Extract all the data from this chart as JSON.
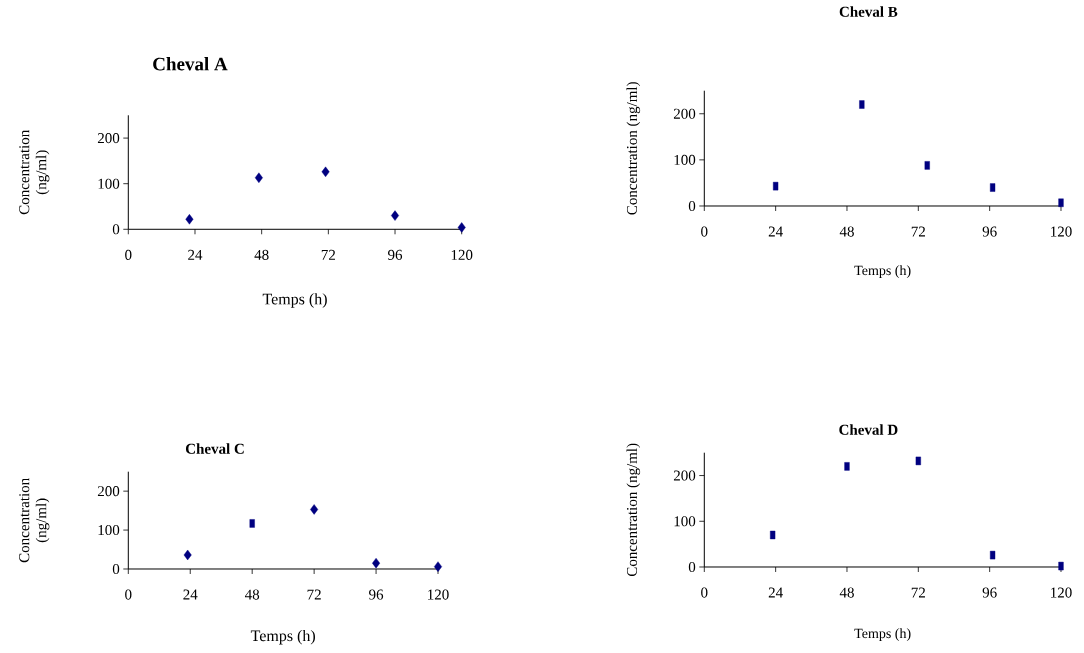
{
  "chart_data": [
    {
      "type": "scatter",
      "title": "Cheval A",
      "xlabel": "Temps (h)",
      "ylabel": "Concentration (ng/ml)",
      "xlim": [
        0,
        120
      ],
      "ylim": [
        0,
        250
      ],
      "xticks": [
        0,
        24,
        48,
        72,
        96,
        120
      ],
      "yticks": [
        0,
        100,
        200
      ],
      "series": [
        {
          "color": "#000080",
          "marker": "diamond",
          "x": [
            22,
            47,
            71,
            96,
            120
          ],
          "values": [
            22,
            113,
            126,
            30,
            4
          ]
        }
      ]
    },
    {
      "type": "scatter",
      "title": "Cheval B",
      "xlabel": "Temps (h)",
      "ylabel": "Concentration (ng/ml)",
      "xlim": [
        0,
        120
      ],
      "ylim": [
        0,
        250
      ],
      "xticks": [
        0,
        24,
        48,
        72,
        96,
        120
      ],
      "yticks": [
        0,
        100,
        200
      ],
      "series": [
        {
          "color": "#000080",
          "marker": "square",
          "x": [
            24,
            53,
            75,
            97,
            120
          ],
          "values": [
            43,
            220,
            88,
            40,
            7
          ]
        }
      ]
    },
    {
      "type": "scatter",
      "title": "Cheval C",
      "xlabel": "Temps (h)",
      "ylabel": "Concentration (ng/ml)",
      "xlim": [
        0,
        120
      ],
      "ylim": [
        0,
        250
      ],
      "xticks": [
        0,
        24,
        48,
        72,
        96,
        120
      ],
      "yticks": [
        0,
        100,
        200
      ],
      "series": [
        {
          "color": "#000080",
          "marker": "diamond",
          "x": [
            23,
            72,
            96,
            120
          ],
          "values": [
            36,
            153,
            15,
            6
          ]
        },
        {
          "color": "#000080",
          "marker": "square",
          "x": [
            48
          ],
          "values": [
            117
          ]
        }
      ]
    },
    {
      "type": "scatter",
      "title": "Cheval D",
      "xlabel": "Temps (h)",
      "ylabel": "Concentration (ng/ml)",
      "xlim": [
        0,
        120
      ],
      "ylim": [
        0,
        250
      ],
      "xticks": [
        0,
        24,
        48,
        72,
        96,
        120
      ],
      "yticks": [
        0,
        100,
        200
      ],
      "series": [
        {
          "color": "#000080",
          "marker": "square",
          "x": [
            23,
            48,
            72,
            97,
            120
          ],
          "values": [
            70,
            220,
            232,
            26,
            2
          ]
        }
      ]
    }
  ]
}
